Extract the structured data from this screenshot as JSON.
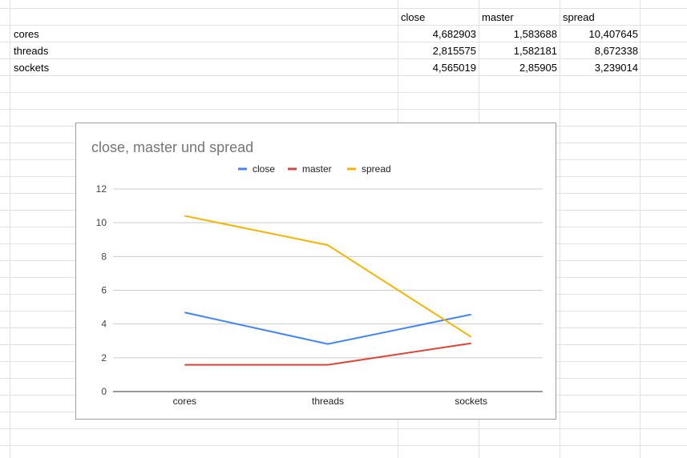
{
  "sheet": {
    "header": [
      "close",
      "master",
      "spread"
    ],
    "rows": [
      {
        "label": "cores",
        "values": [
          "4,682903",
          "1,583688",
          "10,407645"
        ]
      },
      {
        "label": "threads",
        "values": [
          "2,815575",
          "1,582181",
          "8,672338"
        ]
      },
      {
        "label": "sockets",
        "values": [
          "4,565019",
          "2,85905",
          "3,239014"
        ]
      }
    ]
  },
  "chart_data": {
    "type": "line",
    "title": "close, master und spread",
    "categories": [
      "cores",
      "threads",
      "sockets"
    ],
    "series": [
      {
        "name": "close",
        "color": "#4285f4",
        "values": [
          4.682903,
          2.815575,
          4.565019
        ]
      },
      {
        "name": "master",
        "color": "#db4437",
        "values": [
          1.583688,
          1.582181,
          2.85905
        ]
      },
      {
        "name": "spread",
        "color": "#f4b400",
        "values": [
          10.407645,
          8.672338,
          3.239014
        ]
      }
    ],
    "ylim": [
      0,
      12
    ],
    "yticks": [
      "0",
      "2",
      "4",
      "6",
      "8",
      "10",
      "12"
    ],
    "grid": true,
    "legend": "top"
  }
}
